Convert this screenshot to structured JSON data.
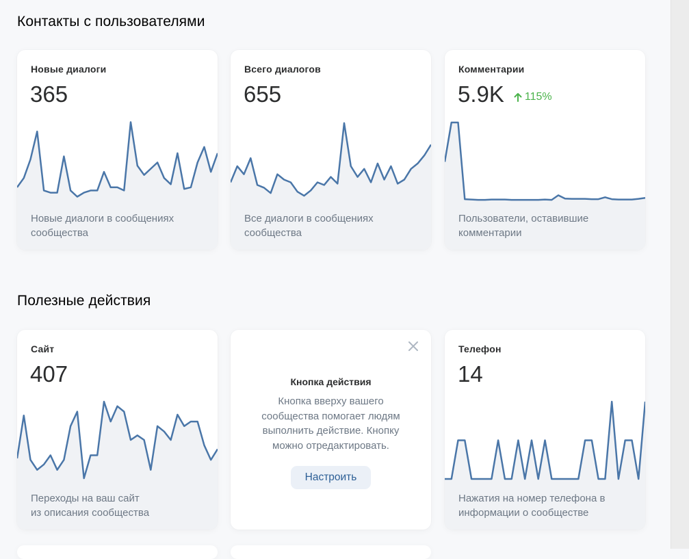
{
  "sections": [
    {
      "title": "Контакты с пользователями",
      "cards": [
        {
          "title": "Новые диалоги",
          "value": "365",
          "description": "Новые диалоги в сообщениях сообщества"
        },
        {
          "title": "Всего диалогов",
          "value": "655",
          "description": "Все диалоги в сообщениях сообщества"
        },
        {
          "title": "Комментарии",
          "value": "5.9K",
          "trend": "115%",
          "trend_direction": "up",
          "description": "Пользователи, оставившие комментарии"
        }
      ]
    },
    {
      "title": "Полезные действия",
      "cards": [
        {
          "title": "Сайт",
          "value": "407",
          "description_line1": "Переходы на ваш сайт",
          "description_line2": "из описания сообщества"
        },
        {
          "type": "promo",
          "title": "Кнопка действия",
          "text": "Кнопка вверху вашего сообщества помогает людям выполнить действие. Кнопку можно отредактировать.",
          "button_label": "Настроить",
          "close_icon": "close-icon"
        },
        {
          "title": "Телефон",
          "value": "14",
          "description": "Нажатия на номер телефона в информации о сообществе"
        }
      ]
    }
  ],
  "colors": {
    "line": "#4a76a8",
    "fill": "#f0f2f5",
    "trend_up": "#4bb34b",
    "background": "#f7f8fa"
  },
  "chart_data": [
    {
      "type": "line",
      "title": "Новые диалоги",
      "series": [
        {
          "name": "Новые диалоги",
          "values": [
            4,
            7,
            13,
            22,
            3,
            2.3,
            2.3,
            14,
            3,
            1,
            2.3,
            3,
            3,
            9,
            4,
            4,
            3,
            25,
            11,
            8,
            10,
            12,
            7,
            5,
            15,
            3.5,
            4,
            12,
            17,
            9,
            15
          ]
        }
      ]
    },
    {
      "type": "line",
      "title": "Всего диалогов",
      "series": [
        {
          "name": "Всего диалогов",
          "values": [
            7,
            13,
            10,
            16,
            6,
            5,
            3,
            10,
            8,
            7,
            3.5,
            2,
            4,
            7,
            6,
            9,
            6.5,
            29,
            13,
            9,
            12,
            7,
            14,
            8,
            13,
            6.5,
            8,
            12,
            14,
            17,
            21
          ]
        }
      ]
    },
    {
      "type": "line",
      "title": "Комментарии",
      "series": [
        {
          "name": "Комментарии",
          "values": [
            60,
            120,
            120,
            3,
            2.5,
            2,
            2,
            2.5,
            2.5,
            2.5,
            2,
            2,
            2,
            2,
            2,
            2.5,
            2,
            9,
            4,
            3.5,
            3.5,
            3.5,
            3,
            3,
            6,
            3,
            2.5,
            2.5,
            2.5,
            3.5,
            5
          ]
        }
      ]
    },
    {
      "type": "line",
      "title": "Сайт",
      "series": [
        {
          "name": "Сайт",
          "values": [
            26,
            82,
            24,
            11,
            18,
            30,
            11,
            24,
            68,
            87,
            0,
            30,
            30,
            100,
            74,
            94,
            87,
            50,
            56,
            50,
            11,
            68,
            61,
            50,
            83,
            68,
            74,
            74,
            43,
            24,
            38
          ]
        }
      ]
    },
    {
      "type": "line",
      "title": "Телефон",
      "series": [
        {
          "name": "Телефон",
          "values": [
            0,
            0,
            1,
            1,
            0,
            0,
            0,
            0,
            1,
            0,
            0,
            1,
            0,
            1,
            0,
            1,
            0,
            0,
            0,
            0,
            0,
            1,
            1,
            0,
            0,
            2,
            0,
            1,
            1,
            0,
            2
          ]
        }
      ]
    }
  ]
}
